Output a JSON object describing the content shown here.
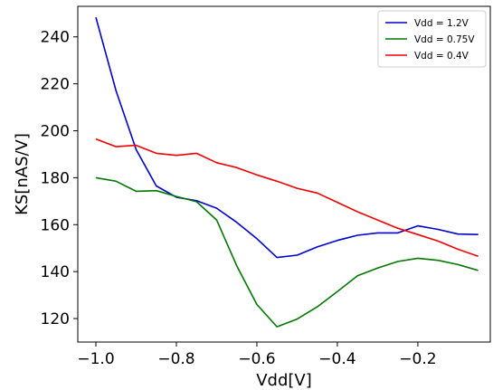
{
  "chart_data": {
    "type": "line",
    "xlabel": "Vdd[V]",
    "ylabel": "KS[nAS/V]",
    "xlim": [
      -1.045,
      -0.02
    ],
    "ylim": [
      110,
      253
    ],
    "xticks": [
      -1.0,
      -0.8,
      -0.6,
      -0.4,
      -0.2
    ],
    "xtick_labels": [
      "−1.0",
      "−0.8",
      "−0.6",
      "−0.4",
      "−0.2"
    ],
    "yticks": [
      120,
      140,
      160,
      180,
      200,
      220,
      240
    ],
    "ytick_labels": [
      "120",
      "140",
      "160",
      "180",
      "200",
      "220",
      "240"
    ],
    "grid": false,
    "legend_position": "top-right",
    "x": [
      -1.0,
      -0.95,
      -0.9,
      -0.85,
      -0.8,
      -0.75,
      -0.7,
      -0.65,
      -0.6,
      -0.55,
      -0.5,
      -0.45,
      -0.4,
      -0.35,
      -0.3,
      -0.25,
      -0.2,
      -0.15,
      -0.1,
      -0.05
    ],
    "series": [
      {
        "name": "Vdd = 1.2V",
        "color": "#0000cc",
        "values": [
          248.3,
          217.0,
          192.0,
          176.5,
          171.7,
          170.2,
          167.0,
          161.0,
          154.0,
          146.0,
          147.0,
          150.5,
          153.3,
          155.5,
          156.5,
          156.5,
          159.5,
          158.0,
          156.0,
          155.8
        ]
      },
      {
        "name": "Vdd = 0.75V",
        "color": "#007700",
        "values": [
          180.0,
          178.5,
          174.2,
          174.5,
          172.0,
          169.8,
          162.0,
          142.5,
          126.0,
          116.5,
          119.8,
          125.0,
          131.5,
          138.2,
          141.5,
          144.3,
          145.7,
          144.8,
          143.0,
          140.5
        ]
      },
      {
        "name": "Vdd = 0.4V",
        "color": "#ee0000",
        "values": [
          196.5,
          193.2,
          193.8,
          190.4,
          189.5,
          190.4,
          186.4,
          184.3,
          181.2,
          178.5,
          175.5,
          173.5,
          169.5,
          165.5,
          162.0,
          158.5,
          155.8,
          153.0,
          149.5,
          146.5
        ]
      }
    ]
  }
}
